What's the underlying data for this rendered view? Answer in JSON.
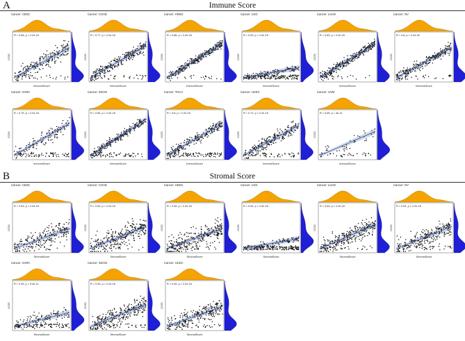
{
  "figure": {
    "panel_a_letter": "A",
    "panel_a_title": "Immune Score",
    "panel_b_letter": "B",
    "panel_b_title": "Stromal Score"
  },
  "colors": {
    "density_top": "#f5a300",
    "density_side": "#1f1fd6",
    "points": "#111111",
    "fit_line": "#3b5fc0",
    "conf_band": "#c9cfdc"
  },
  "chart_data": [
    {
      "type": "scatter",
      "group": "A",
      "title": "Cancer: CESC",
      "annotation": "R = 0.56, p < 2.2e-16",
      "xlabel": "ImmuneScore",
      "ylabel": "ICOS",
      "n": 240,
      "spread": 0.55,
      "floor": 0.1,
      "slope": 0.75
    },
    {
      "type": "scatter",
      "group": "A",
      "title": "Cancer: COAD",
      "annotation": "R = 0.77, p < 2.2e-16",
      "xlabel": "ImmuneScore",
      "ylabel": "ICOS",
      "n": 300,
      "spread": 0.4,
      "floor": 0.15,
      "slope": 0.8
    },
    {
      "type": "scatter",
      "group": "A",
      "title": "Cancer: HNSC",
      "annotation": "R = 0.86, p < 2.2e-16",
      "xlabel": "ImmuneScore",
      "ylabel": "ICOS",
      "n": 320,
      "spread": 0.3,
      "floor": 0.1,
      "slope": 0.85
    },
    {
      "type": "scatter",
      "group": "A",
      "title": "Cancer: LGG",
      "annotation": "R = 0.53, p < 2.2e-16",
      "xlabel": "ImmuneScore",
      "ylabel": "ICOS",
      "n": 260,
      "spread": 0.2,
      "floor": 0.8,
      "slope": 0.25
    },
    {
      "type": "scatter",
      "group": "A",
      "title": "Cancer: LUAD",
      "annotation": "R = 0.83, p < 2.2e-16",
      "xlabel": "ImmuneScore",
      "ylabel": "ICOS",
      "n": 320,
      "spread": 0.3,
      "floor": 0.1,
      "slope": 0.85
    },
    {
      "type": "scatter",
      "group": "A",
      "title": "Cancer: OV",
      "annotation": "R = 0.8, p < 2.2e-16",
      "xlabel": "ImmuneScore",
      "ylabel": "ICOS",
      "n": 280,
      "spread": 0.35,
      "floor": 0.1,
      "slope": 0.75
    },
    {
      "type": "scatter",
      "group": "A",
      "title": "Cancer: SARC",
      "annotation": "R = 0.75, p < 2.2e-16",
      "xlabel": "ImmuneScore",
      "ylabel": "ICOS",
      "n": 200,
      "spread": 0.5,
      "floor": 0.5,
      "slope": 0.8
    },
    {
      "type": "scatter",
      "group": "A",
      "title": "Cancer: SKCM",
      "annotation": "R = 0.84, p < 2.2e-16",
      "xlabel": "ImmuneScore",
      "ylabel": "ICOS",
      "n": 320,
      "spread": 0.3,
      "floor": 0.3,
      "slope": 0.9
    },
    {
      "type": "scatter",
      "group": "A",
      "title": "Cancer: THCA",
      "annotation": "R = 0.8, p < 2.2e-16",
      "xlabel": "ImmuneScore",
      "ylabel": "ICOS",
      "n": 300,
      "spread": 0.35,
      "floor": 0.4,
      "slope": 0.8
    },
    {
      "type": "scatter",
      "group": "A",
      "title": "Cancer: UCEC",
      "annotation": "R = 0.72, p < 2.2e-16",
      "xlabel": "ImmuneScore",
      "ylabel": "ICOS",
      "n": 280,
      "spread": 0.45,
      "floor": 0.3,
      "slope": 0.75
    },
    {
      "type": "scatter",
      "group": "A",
      "title": "Cancer: UVM",
      "annotation": "R = 0.66, p = 4e-11",
      "xlabel": "ImmuneScore",
      "ylabel": "ICOS",
      "n": 70,
      "spread": 0.5,
      "floor": 0.6,
      "slope": 0.6
    },
    {
      "type": "scatter",
      "group": "B",
      "title": "Cancer: CESC",
      "annotation": "R = 0.52, p < 2.2e-16",
      "xlabel": "StromalScore",
      "ylabel": "ICOS",
      "n": 240,
      "spread": 0.7,
      "floor": 0.1,
      "slope": 0.5
    },
    {
      "type": "scatter",
      "group": "B",
      "title": "Cancer: COAD",
      "annotation": "R = 0.54, p < 2.2e-16",
      "xlabel": "StromalScore",
      "ylabel": "ICOS",
      "n": 300,
      "spread": 0.7,
      "floor": 0.1,
      "slope": 0.55
    },
    {
      "type": "scatter",
      "group": "B",
      "title": "Cancer: HNSC",
      "annotation": "R = 0.46, p < 2.2e-16",
      "xlabel": "StromalScore",
      "ylabel": "ICOS",
      "n": 320,
      "spread": 0.75,
      "floor": 0.1,
      "slope": 0.5
    },
    {
      "type": "scatter",
      "group": "B",
      "title": "Cancer: LGG",
      "annotation": "R = 0.54, p < 2.2e-16",
      "xlabel": "StromalScore",
      "ylabel": "ICOS",
      "n": 260,
      "spread": 0.2,
      "floor": 0.8,
      "slope": 0.25
    },
    {
      "type": "scatter",
      "group": "B",
      "title": "Cancer: LUAD",
      "annotation": "R = 0.54, p < 2.2e-16",
      "xlabel": "StromalScore",
      "ylabel": "ICOS",
      "n": 320,
      "spread": 0.6,
      "floor": 0.1,
      "slope": 0.6
    },
    {
      "type": "scatter",
      "group": "B",
      "title": "Cancer: OV",
      "annotation": "R = 0.54, p < 2.2e-16",
      "xlabel": "StromalScore",
      "ylabel": "ICOS",
      "n": 280,
      "spread": 0.6,
      "floor": 0.2,
      "slope": 0.55
    },
    {
      "type": "scatter",
      "group": "B",
      "title": "Cancer: SARC",
      "annotation": "R = 0.45, p = 5.4e-11",
      "xlabel": "StromalScore",
      "ylabel": "ICOS",
      "n": 200,
      "spread": 0.5,
      "floor": 0.7,
      "slope": 0.35
    },
    {
      "type": "scatter",
      "group": "B",
      "title": "Cancer: SKCM",
      "annotation": "R = 0.53, p < 2.2e-16",
      "xlabel": "StromalScore",
      "ylabel": "ICOS",
      "n": 320,
      "spread": 0.65,
      "floor": 0.2,
      "slope": 0.55
    },
    {
      "type": "scatter",
      "group": "B",
      "title": "Cancer: UCEC",
      "annotation": "R = 0.45, p < 2.2e-16",
      "xlabel": "StromalScore",
      "ylabel": "ICOS",
      "n": 280,
      "spread": 0.65,
      "floor": 0.2,
      "slope": 0.5
    }
  ]
}
